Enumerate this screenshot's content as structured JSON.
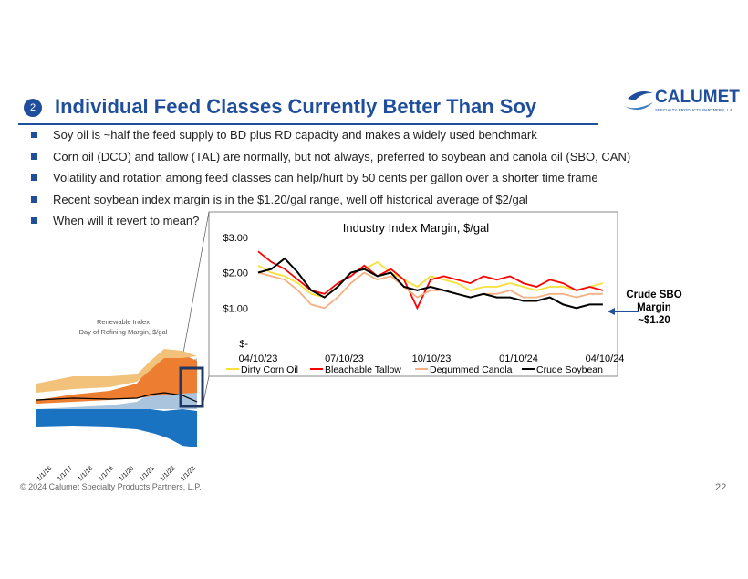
{
  "header": {
    "number": "2",
    "title": "Individual Feed Classes Currently Better Than Soy",
    "logo": "CALUMET",
    "logo_sub": "SPECIALTY PRODUCTS PARTNERS, L.P."
  },
  "bullets": [
    "Soy oil is ~half the feed supply to BD plus RD capacity and makes a widely used benchmark",
    "Corn oil (DCO) and tallow (TAL) are normally, but not always, preferred to soybean and canola oil (SBO, CAN)",
    "Volatility and rotation among feed classes can help/hurt by 50 cents per gallon over a shorter time frame",
    "Recent soybean index margin is in the $1.20/gal range, well off historical average of $2/gal",
    "When will it revert to mean?"
  ],
  "chart_data": {
    "type": "line",
    "title": "Industry Index Margin, $/gal",
    "x": [
      "2023-04-10",
      "2023-04-24",
      "2023-05-08",
      "2023-05-22",
      "2023-06-05",
      "2023-06-19",
      "2023-07-03",
      "2023-07-17",
      "2023-07-31",
      "2023-08-14",
      "2023-08-28",
      "2023-09-11",
      "2023-09-25",
      "2023-10-09",
      "2023-10-23",
      "2023-11-06",
      "2023-11-20",
      "2023-12-04",
      "2023-12-18",
      "2024-01-01",
      "2024-01-15",
      "2024-01-29",
      "2024-02-12",
      "2024-02-26",
      "2024-03-11",
      "2024-03-25",
      "2024-04-08"
    ],
    "xlim": [
      "2023-04-10",
      "2024-04-10"
    ],
    "xticks": [
      {
        "value": "2023-04-10",
        "label": "04/10/23"
      },
      {
        "value": "2023-07-10",
        "label": "07/10/23"
      },
      {
        "value": "2023-10-10",
        "label": "10/10/23"
      },
      {
        "value": "2024-01-10",
        "label": "01/10/24"
      },
      {
        "value": "2024-04-10",
        "label": "04/10/24"
      }
    ],
    "ylim": [
      0,
      3.2
    ],
    "yticks": [
      {
        "value": 0,
        "label": "$-"
      },
      {
        "value": 1,
        "label": "$1.00"
      },
      {
        "value": 2,
        "label": "$2.00"
      },
      {
        "value": 3,
        "label": "$3.00"
      }
    ],
    "series": [
      {
        "name": "Dirty Corn Oil",
        "color": "#f7e03a",
        "values": [
          2.2,
          2.0,
          1.9,
          1.7,
          1.4,
          1.3,
          1.6,
          2.0,
          2.1,
          2.3,
          2.0,
          1.8,
          1.6,
          1.9,
          1.8,
          1.7,
          1.5,
          1.6,
          1.6,
          1.7,
          1.6,
          1.5,
          1.6,
          1.6,
          1.5,
          1.6,
          1.7
        ]
      },
      {
        "name": "Bleachable Tallow",
        "color": "#ff0000",
        "values": [
          2.6,
          2.3,
          2.1,
          1.8,
          1.5,
          1.4,
          1.7,
          1.9,
          2.2,
          1.9,
          2.1,
          1.8,
          1.0,
          1.8,
          1.9,
          1.8,
          1.7,
          1.9,
          1.8,
          1.9,
          1.7,
          1.6,
          1.8,
          1.7,
          1.5,
          1.6,
          1.5
        ]
      },
      {
        "name": "Degummed Canola",
        "color": "#f4b183",
        "values": [
          2.0,
          1.9,
          1.8,
          1.5,
          1.1,
          1.0,
          1.3,
          1.7,
          2.0,
          1.8,
          1.9,
          1.6,
          1.3,
          1.5,
          1.5,
          1.4,
          1.3,
          1.4,
          1.4,
          1.5,
          1.3,
          1.3,
          1.4,
          1.4,
          1.3,
          1.4,
          1.4
        ]
      },
      {
        "name": "Crude Soybean",
        "color": "#000000",
        "values": [
          2.0,
          2.1,
          2.4,
          2.0,
          1.5,
          1.3,
          1.6,
          2.0,
          2.1,
          1.9,
          2.0,
          1.6,
          1.5,
          1.6,
          1.5,
          1.4,
          1.3,
          1.4,
          1.3,
          1.3,
          1.2,
          1.2,
          1.3,
          1.1,
          1.0,
          1.1,
          1.1
        ]
      }
    ]
  },
  "annotation": "Crude SBO Margin ~$1.20",
  "thumbnail": {
    "title": [
      "Renewable Index",
      "Day of Refining Margin, $/gal"
    ],
    "xlabels": [
      "1/1/16",
      "1/1/17",
      "1/1/18",
      "1/1/19",
      "1/1/20",
      "1/1/21",
      "1/1/22",
      "1/1/23"
    ]
  },
  "footer": {
    "copyright": "© 2024 Calumet Specialty Products Partners, L.P.",
    "page": "22"
  }
}
